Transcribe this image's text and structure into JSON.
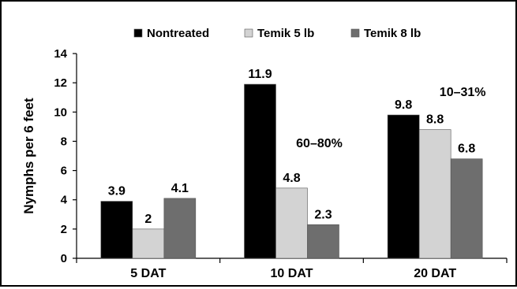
{
  "chart_data": {
    "type": "bar",
    "categories": [
      "5 DAT",
      "10 DAT",
      "20 DAT"
    ],
    "series": [
      {
        "name": "Nontreated",
        "values": [
          3.9,
          11.9,
          9.8
        ],
        "labels": [
          "3.9",
          "11.9",
          "9.8"
        ],
        "color": "#000000"
      },
      {
        "name": "Temik 5 lb",
        "values": [
          2,
          4.8,
          8.8
        ],
        "labels": [
          "2",
          "4.8",
          "8.8"
        ],
        "color": "#d3d3d3"
      },
      {
        "name": "Temik 8 lb",
        "values": [
          4.1,
          2.3,
          6.8
        ],
        "labels": [
          "4.1",
          "2.3",
          "6.8"
        ],
        "color": "#6e6e6e"
      }
    ],
    "ylabel": "Nymphs per 6 feet",
    "xlabel": "",
    "ylim": [
      0,
      14
    ],
    "yticks": [
      0,
      2,
      4,
      6,
      8,
      10,
      12,
      14
    ],
    "legend_position": "top",
    "grid": false,
    "annotations": [
      {
        "text": "60–80%",
        "category": "10 DAT",
        "y": 7.6
      },
      {
        "text": "10–31%",
        "category": "20 DAT",
        "y": 11.1
      }
    ]
  }
}
